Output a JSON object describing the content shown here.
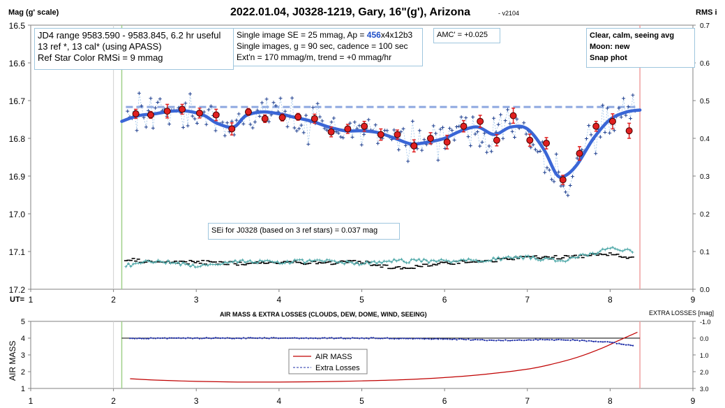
{
  "title": "2022.01.04, J0328-1219, Gary, 16\"(g'), Arizona",
  "version": "- v2104",
  "left_axis_title": "Mag (g' scale)",
  "right_axis_title": "RMS i",
  "ut_label": "UT=",
  "info_box_1": [
    "JD4 range 9583.590 - 9583.845, 6.2 hr useful",
    "13 ref *, 13 cal* (using APASS)",
    "Ref Star Color RMSi = 9 mmag"
  ],
  "info_box_2": {
    "prefix": "Single image SE = 25 mmag, Ap = ",
    "ap_value": "456",
    "suffix": "x4x12b3",
    "line2": "Single images, g = 90 sec, cadence = 100 sec",
    "line3": "Ext'n = 170 mmag/m, trend = +0 mmag/hr"
  },
  "amc_box": "AMC' = +0.025",
  "conditions_box": [
    "Clear, calm, seeing avg",
    "Moon: new",
    "Snap phot"
  ],
  "sei_box": "SEi for J0328 (based on 3 ref stars) = 0.037 mag",
  "bottom_title": "AIR MASS & EXTRA LOSSES (CLOUDS, DEW, DOME, WIND, SEEING)",
  "bottom_right_title": "EXTRA LOSSES [mag]",
  "bottom_left_axis_title": "AIR MASS",
  "legend": {
    "airmass": "AIR MASS",
    "losses": "Extra Losses"
  },
  "colors": {
    "airmass": "#c00000",
    "losses": "#1f2fa8",
    "trend": "#3a66d6",
    "mag_points": "#1f3f8f",
    "binned": "#e02020",
    "ref_line": "#8ea8e0",
    "rms_black": "#000000",
    "rms_teal": "#4aa6a6",
    "start_line": "#9fd08a",
    "end_line": "#f0a0a0"
  },
  "chart_data": [
    {
      "type": "scatter",
      "title": "2022.01.04, J0328-1219, Gary, 16\"(g'), Arizona",
      "xlabel": "UT",
      "ylabel": "Mag (g' scale)",
      "xlim": [
        1,
        9
      ],
      "ylim": [
        17.2,
        16.5
      ],
      "y_reversed": true,
      "x_ticks": [
        "1",
        "2",
        "3",
        "4",
        "5",
        "6",
        "7",
        "8",
        "9"
      ],
      "y_ticks": [
        "16.5",
        "16.6",
        "16.7",
        "16.8",
        "16.9",
        "17.0",
        "17.1",
        "17.2"
      ],
      "right_axis": {
        "label": "RMS i",
        "ylim": [
          0.0,
          0.7
        ],
        "ticks": [
          "0.0",
          "0.1",
          "0.2",
          "0.3",
          "0.4",
          "0.5",
          "0.6",
          "0.7"
        ]
      },
      "vertical_markers": {
        "start_ut": 2.1,
        "end_ut": 8.36
      },
      "reference_level": 16.717,
      "binned_points": {
        "x": [
          2.27,
          2.45,
          2.65,
          2.83,
          3.04,
          3.24,
          3.43,
          3.63,
          3.83,
          4.04,
          4.23,
          4.43,
          4.63,
          4.83,
          5.03,
          5.23,
          5.43,
          5.63,
          5.83,
          6.03,
          6.23,
          6.43,
          6.63,
          6.83,
          7.03,
          7.23,
          7.43,
          7.63,
          7.83,
          8.03,
          8.23
        ],
        "y": [
          16.735,
          16.738,
          16.728,
          16.723,
          16.733,
          16.738,
          16.775,
          16.73,
          16.748,
          16.745,
          16.743,
          16.748,
          16.783,
          16.775,
          16.768,
          16.79,
          16.79,
          16.82,
          16.8,
          16.81,
          16.768,
          16.755,
          16.805,
          16.74,
          16.805,
          16.813,
          16.91,
          16.84,
          16.768,
          16.755,
          16.78
        ],
        "err": [
          0.012,
          0.009,
          0.018,
          0.013,
          0.013,
          0.015,
          0.016,
          0.009,
          0.01,
          0.009,
          0.009,
          0.012,
          0.013,
          0.012,
          0.013,
          0.015,
          0.012,
          0.016,
          0.015,
          0.018,
          0.015,
          0.016,
          0.015,
          0.02,
          0.016,
          0.015,
          0.012,
          0.018,
          0.013,
          0.02,
          0.02
        ]
      },
      "trend_curve": {
        "x": [
          2.1,
          2.3,
          2.5,
          2.7,
          2.9,
          3.1,
          3.25,
          3.45,
          3.6,
          3.8,
          4.0,
          4.2,
          4.4,
          4.6,
          4.8,
          5.0,
          5.2,
          5.4,
          5.6,
          5.8,
          6.0,
          6.2,
          6.4,
          6.6,
          6.8,
          7.0,
          7.2,
          7.35,
          7.45,
          7.6,
          7.8,
          8.0,
          8.2,
          8.36
        ],
        "y": [
          16.755,
          16.74,
          16.735,
          16.728,
          16.728,
          16.74,
          16.76,
          16.77,
          16.74,
          16.73,
          16.735,
          16.745,
          16.755,
          16.77,
          16.78,
          16.78,
          16.785,
          16.8,
          16.815,
          16.81,
          16.8,
          16.78,
          16.77,
          16.79,
          16.77,
          16.775,
          16.83,
          16.895,
          16.9,
          16.87,
          16.8,
          16.75,
          16.73,
          16.725
        ]
      },
      "rms_series": [
        {
          "color": "black",
          "x": [
            2.15,
            2.5,
            3.0,
            3.5,
            4.0,
            4.5,
            5.0,
            5.3,
            5.6,
            6.0,
            6.5,
            7.0,
            7.4,
            7.8,
            8.0,
            8.25
          ],
          "y": [
            0.078,
            0.072,
            0.072,
            0.068,
            0.072,
            0.07,
            0.072,
            0.06,
            0.058,
            0.07,
            0.075,
            0.085,
            0.085,
            0.09,
            0.095,
            0.085
          ]
        },
        {
          "color": "teal",
          "x": [
            2.15,
            2.5,
            3.0,
            3.5,
            4.0,
            4.5,
            5.0,
            5.3,
            5.6,
            6.0,
            6.5,
            7.0,
            7.4,
            7.8,
            8.0,
            8.25
          ],
          "y": [
            0.062,
            0.076,
            0.062,
            0.075,
            0.072,
            0.075,
            0.068,
            0.075,
            0.075,
            0.075,
            0.078,
            0.085,
            0.075,
            0.095,
            0.11,
            0.1
          ]
        }
      ]
    },
    {
      "type": "line",
      "title": "AIR MASS & EXTRA LOSSES (CLOUDS, DEW, DOME, WIND, SEEING)",
      "ylabel": "AIR MASS",
      "xlim": [
        1,
        9
      ],
      "ylim": [
        1,
        5
      ],
      "x_ticks": [
        "1",
        "2",
        "3",
        "4",
        "5",
        "6",
        "7",
        "8",
        "9"
      ],
      "y_ticks": [
        "1",
        "2",
        "3",
        "4",
        "5"
      ],
      "right_axis": {
        "label": "EXTRA LOSSES [mag]",
        "ylim": [
          3.0,
          -1.0
        ],
        "ticks": [
          "-1.0",
          "0.0",
          "1.0",
          "2.0",
          "3.0"
        ]
      },
      "series": [
        {
          "name": "AIR MASS",
          "x": [
            2.2,
            2.5,
            3.0,
            3.5,
            4.0,
            4.5,
            5.0,
            5.5,
            6.0,
            6.5,
            7.0,
            7.3,
            7.6,
            7.9,
            8.1,
            8.33
          ],
          "y": [
            1.58,
            1.5,
            1.42,
            1.38,
            1.38,
            1.4,
            1.45,
            1.52,
            1.65,
            1.85,
            2.15,
            2.45,
            2.85,
            3.4,
            3.85,
            4.35
          ]
        },
        {
          "name": "Extra Losses",
          "axis": "right",
          "x": [
            2.2,
            3.0,
            4.0,
            5.0,
            5.5,
            6.0,
            6.5,
            6.7,
            7.0,
            7.5,
            7.8,
            8.0,
            8.15,
            8.3
          ],
          "y": [
            0.02,
            0.0,
            0.0,
            0.0,
            0.02,
            0.05,
            0.12,
            0.14,
            0.1,
            0.1,
            0.2,
            0.25,
            0.35,
            0.45
          ]
        }
      ]
    }
  ]
}
